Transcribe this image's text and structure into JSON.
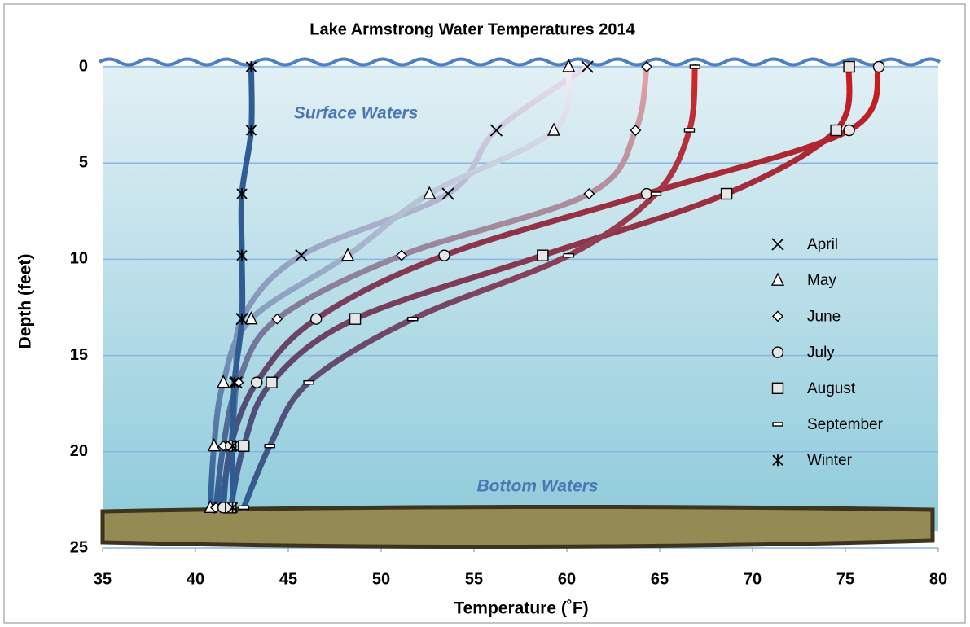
{
  "chart_data": {
    "type": "line",
    "title": "Lake Armstrong Water Temperatures 2014",
    "x_label": "Temperature  (˚F)",
    "y_label": "Depth (feet)",
    "annotations": [
      "Surface Waters",
      "Bottom Waters"
    ],
    "xlim": [
      35,
      80
    ],
    "xticks": [
      35,
      40,
      45,
      50,
      55,
      60,
      65,
      70,
      75,
      80
    ],
    "ylim": [
      0,
      25
    ],
    "yticks": [
      0,
      5,
      10,
      15,
      20,
      25
    ],
    "y_reversed": true,
    "grid": true,
    "legend": "right",
    "base_color": "#2f5d93",
    "y": [
      0,
      3.3,
      6.6,
      9.8,
      13.1,
      16.4,
      19.7,
      22.9
    ],
    "series": [
      {
        "name": "April",
        "color": "#ecdcec",
        "marker": "x",
        "x": [
          61.1,
          56.2,
          53.6,
          45.7,
          42.5,
          42.2,
          41.9,
          41.3
        ]
      },
      {
        "name": "May",
        "color": "#f4f0f4",
        "marker": "triangle",
        "x": [
          60.1,
          59.3,
          52.6,
          48.2,
          43.0,
          41.5,
          41.0,
          40.8
        ]
      },
      {
        "name": "June",
        "color": "#e4a2a2",
        "marker": "diamond",
        "x": [
          64.3,
          63.7,
          61.2,
          51.1,
          44.4,
          42.3,
          41.5,
          41.1
        ]
      },
      {
        "name": "July",
        "color": "#cc1a1a",
        "marker": "circle",
        "x": [
          76.8,
          75.2,
          64.3,
          53.4,
          46.5,
          43.3,
          41.9,
          41.5
        ]
      },
      {
        "name": "August",
        "color": "#cc1a1a",
        "marker": "square",
        "x": [
          75.2,
          74.5,
          68.6,
          58.7,
          48.6,
          44.1,
          42.6,
          41.9
        ]
      },
      {
        "name": "September",
        "color": "#d02828",
        "marker": "dash",
        "x": [
          66.9,
          66.6,
          64.8,
          60.1,
          51.7,
          46.1,
          44.0,
          42.6
        ]
      },
      {
        "name": "Winter",
        "color": "#2f5d93",
        "marker": "asterisk",
        "x": [
          43.0,
          43.0,
          42.5,
          42.5,
          42.5,
          42.1,
          42.0,
          42.0
        ]
      }
    ]
  }
}
